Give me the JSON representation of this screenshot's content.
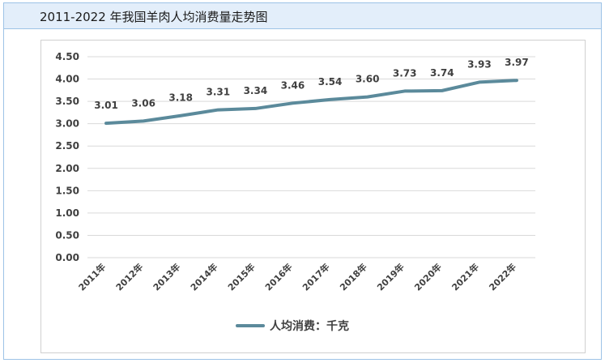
{
  "title": "2011-2022 年我国羊肉人均消费量走势图",
  "legend_label": "人均消费：千克",
  "colors": {
    "line": "#5b8a9b",
    "title_bg": "#e3eefa",
    "border": "#9dc3e6",
    "grid": "#d9d9d9",
    "text": "#404040"
  },
  "chart_data": {
    "type": "line",
    "categories": [
      "2011年",
      "2012年",
      "2013年",
      "2014年",
      "2015年",
      "2016年",
      "2017年",
      "2018年",
      "2019年",
      "2020年",
      "2021年",
      "2022年"
    ],
    "series": [
      {
        "name": "人均消费：千克",
        "values": [
          3.01,
          3.06,
          3.18,
          3.31,
          3.34,
          3.46,
          3.54,
          3.6,
          3.73,
          3.74,
          3.93,
          3.97
        ],
        "labels": [
          "3.01",
          "3.06",
          "3.18",
          "3.31",
          "3.34",
          "3.46",
          "3.54",
          "3.60",
          "3.73",
          "3.74",
          "3.93",
          "3.97"
        ]
      }
    ],
    "yticks": [
      "0.00",
      "0.50",
      "1.00",
      "1.50",
      "2.00",
      "2.50",
      "3.00",
      "3.50",
      "4.00",
      "4.50"
    ],
    "ylim": [
      0,
      4.5
    ],
    "grid": true,
    "legend_position": "bottom"
  }
}
